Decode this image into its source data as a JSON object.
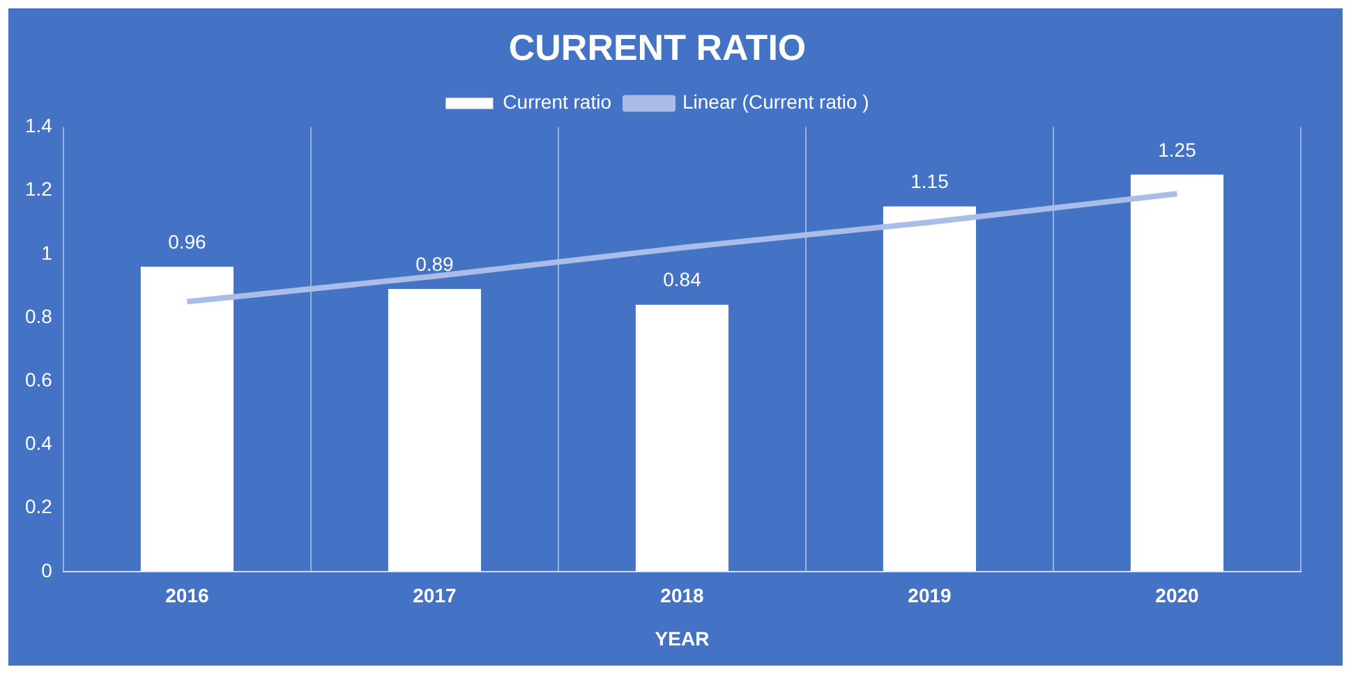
{
  "chart_data": {
    "type": "bar",
    "title": "CURRENT RATIO",
    "xlabel": "YEAR",
    "categories": [
      "2016",
      "2017",
      "2018",
      "2019",
      "2020"
    ],
    "series": [
      {
        "name": "Current ratio",
        "color": "#ffffff",
        "values": [
          0.96,
          0.89,
          0.84,
          1.15,
          1.25
        ],
        "value_labels": [
          "0.96",
          "0.89",
          "0.84",
          "1.15",
          "1.25"
        ]
      },
      {
        "name": "Linear (Current ratio )",
        "type": "line",
        "color": "#a9bde8",
        "values": [
          0.85,
          0.93,
          1.02,
          1.1,
          1.19
        ],
        "marker": "none"
      }
    ],
    "ylim": [
      0,
      1.4
    ],
    "yticks": [
      0,
      0.2,
      0.4,
      0.6,
      0.8,
      1,
      1.2,
      1.4
    ],
    "grid": "x",
    "legend": "top"
  }
}
